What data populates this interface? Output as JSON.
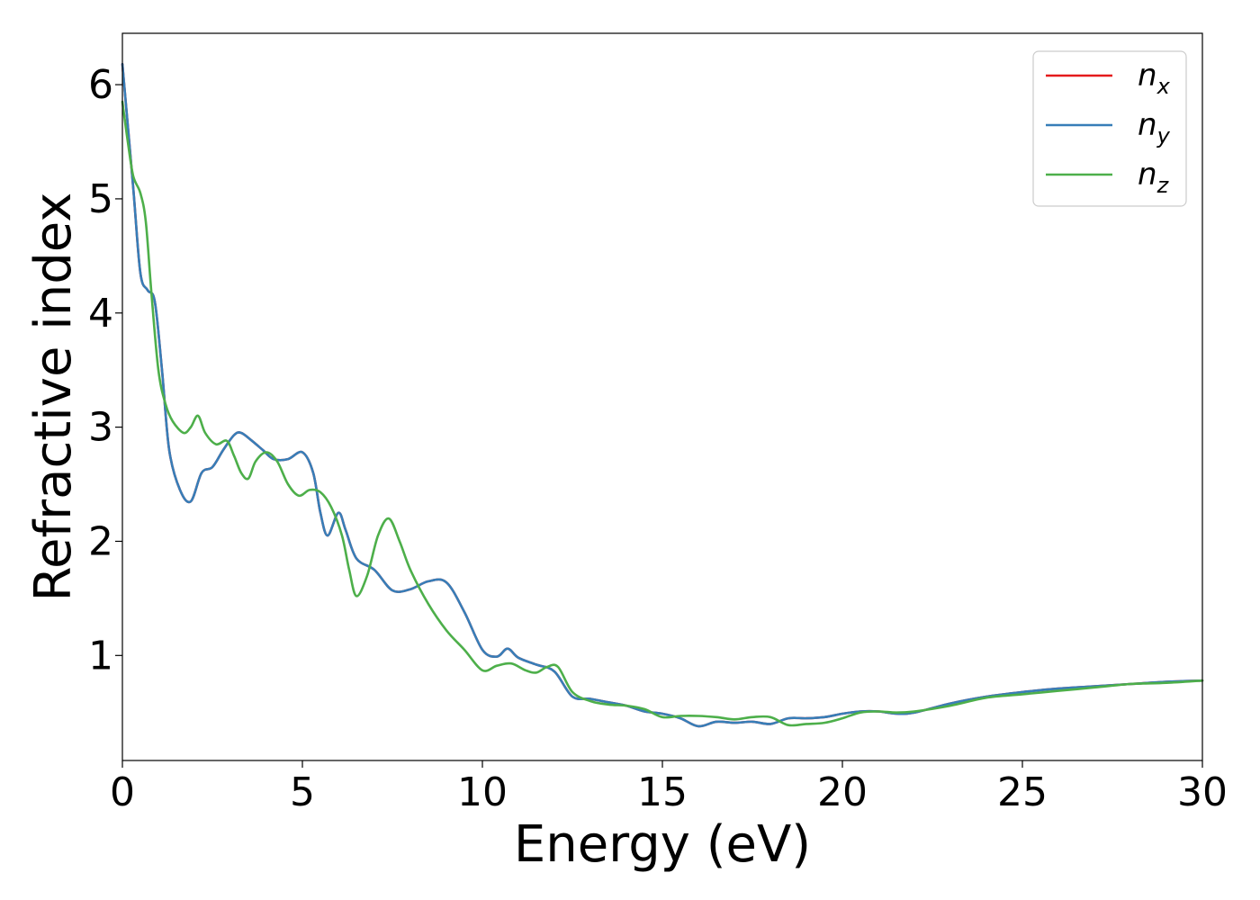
{
  "chart_data": {
    "type": "line",
    "title": "",
    "xlabel": "Energy (eV)",
    "ylabel": "Refractive index",
    "xlim": [
      0,
      30
    ],
    "ylim": [
      0.08,
      6.45
    ],
    "xticks": [
      0,
      5,
      10,
      15,
      20,
      25,
      30
    ],
    "yticks": [
      1,
      2,
      3,
      4,
      5,
      6
    ],
    "grid": false,
    "legend_position": "top-right",
    "series": [
      {
        "name": "n_x",
        "legend_base": "n",
        "legend_sub": "x",
        "color": "#e41a1c",
        "x": [
          0,
          0.3,
          0.5,
          0.7,
          0.9,
          1.1,
          1.3,
          1.6,
          1.9,
          2.2,
          2.5,
          2.8,
          3.1,
          3.3,
          3.6,
          3.9,
          4.2,
          4.6,
          5.0,
          5.3,
          5.5,
          5.7,
          6.0,
          6.2,
          6.5,
          7.0,
          7.5,
          8.0,
          8.5,
          9.0,
          9.5,
          10.0,
          10.4,
          10.7,
          11.0,
          11.5,
          12.0,
          12.5,
          13.0,
          13.5,
          14.0,
          14.5,
          15.0,
          15.5,
          16.0,
          16.5,
          17.0,
          17.5,
          18.0,
          18.5,
          19.0,
          19.5,
          20.0,
          20.5,
          21.0,
          21.5,
          22.0,
          23.0,
          24.0,
          25.0,
          26.0,
          27.0,
          28.0,
          29.0,
          30.0
        ],
        "y": [
          6.18,
          5.1,
          4.35,
          4.2,
          4.1,
          3.5,
          2.8,
          2.45,
          2.35,
          2.6,
          2.65,
          2.8,
          2.93,
          2.95,
          2.88,
          2.8,
          2.72,
          2.72,
          2.78,
          2.6,
          2.25,
          2.05,
          2.25,
          2.1,
          1.85,
          1.75,
          1.57,
          1.58,
          1.65,
          1.64,
          1.38,
          1.05,
          0.99,
          1.06,
          0.98,
          0.92,
          0.86,
          0.64,
          0.62,
          0.59,
          0.56,
          0.51,
          0.49,
          0.45,
          0.38,
          0.42,
          0.41,
          0.42,
          0.4,
          0.45,
          0.45,
          0.46,
          0.49,
          0.51,
          0.51,
          0.49,
          0.5,
          0.58,
          0.64,
          0.68,
          0.71,
          0.73,
          0.75,
          0.77,
          0.78
        ]
      },
      {
        "name": "n_y",
        "legend_base": "n",
        "legend_sub": "y",
        "color": "#377eb8",
        "x": [
          0,
          0.3,
          0.5,
          0.7,
          0.9,
          1.1,
          1.3,
          1.6,
          1.9,
          2.2,
          2.5,
          2.8,
          3.1,
          3.3,
          3.6,
          3.9,
          4.2,
          4.6,
          5.0,
          5.3,
          5.5,
          5.7,
          6.0,
          6.2,
          6.5,
          7.0,
          7.5,
          8.0,
          8.5,
          9.0,
          9.5,
          10.0,
          10.4,
          10.7,
          11.0,
          11.5,
          12.0,
          12.5,
          13.0,
          13.5,
          14.0,
          14.5,
          15.0,
          15.5,
          16.0,
          16.5,
          17.0,
          17.5,
          18.0,
          18.5,
          19.0,
          19.5,
          20.0,
          20.5,
          21.0,
          21.5,
          22.0,
          23.0,
          24.0,
          25.0,
          26.0,
          27.0,
          28.0,
          29.0,
          30.0
        ],
        "y": [
          6.18,
          5.1,
          4.35,
          4.2,
          4.1,
          3.5,
          2.8,
          2.45,
          2.35,
          2.6,
          2.65,
          2.8,
          2.93,
          2.95,
          2.88,
          2.8,
          2.72,
          2.72,
          2.78,
          2.6,
          2.25,
          2.05,
          2.25,
          2.1,
          1.85,
          1.75,
          1.57,
          1.58,
          1.65,
          1.64,
          1.38,
          1.05,
          0.99,
          1.06,
          0.98,
          0.92,
          0.86,
          0.64,
          0.62,
          0.59,
          0.56,
          0.51,
          0.49,
          0.45,
          0.38,
          0.42,
          0.41,
          0.42,
          0.4,
          0.45,
          0.45,
          0.46,
          0.49,
          0.51,
          0.51,
          0.49,
          0.5,
          0.58,
          0.64,
          0.68,
          0.71,
          0.73,
          0.75,
          0.77,
          0.78
        ]
      },
      {
        "name": "n_z",
        "legend_base": "n",
        "legend_sub": "z",
        "color": "#4daf4a",
        "x": [
          0,
          0.15,
          0.3,
          0.5,
          0.65,
          0.8,
          1.0,
          1.2,
          1.4,
          1.7,
          1.9,
          2.1,
          2.3,
          2.6,
          2.9,
          3.1,
          3.3,
          3.5,
          3.7,
          4.0,
          4.3,
          4.6,
          4.9,
          5.2,
          5.5,
          5.8,
          6.1,
          6.3,
          6.5,
          6.8,
          7.1,
          7.4,
          7.7,
          8.0,
          8.5,
          9.0,
          9.5,
          10.0,
          10.4,
          10.8,
          11.2,
          11.5,
          11.8,
          12.1,
          12.5,
          13.0,
          13.5,
          14.0,
          14.5,
          15.0,
          15.5,
          16.0,
          16.5,
          17.0,
          17.5,
          18.0,
          18.5,
          19.0,
          19.5,
          20.0,
          20.5,
          21.0,
          21.5,
          22.0,
          23.0,
          24.0,
          25.0,
          26.0,
          27.0,
          28.0,
          29.0,
          30.0
        ],
        "y": [
          5.85,
          5.5,
          5.2,
          5.05,
          4.8,
          4.2,
          3.5,
          3.2,
          3.05,
          2.95,
          3.0,
          3.1,
          2.95,
          2.85,
          2.88,
          2.75,
          2.6,
          2.55,
          2.7,
          2.78,
          2.7,
          2.5,
          2.4,
          2.45,
          2.43,
          2.3,
          2.05,
          1.75,
          1.52,
          1.7,
          2.05,
          2.2,
          2.0,
          1.75,
          1.45,
          1.22,
          1.05,
          0.87,
          0.91,
          0.93,
          0.87,
          0.85,
          0.9,
          0.9,
          0.68,
          0.6,
          0.57,
          0.56,
          0.53,
          0.46,
          0.47,
          0.47,
          0.46,
          0.44,
          0.46,
          0.46,
          0.39,
          0.4,
          0.41,
          0.45,
          0.5,
          0.51,
          0.5,
          0.51,
          0.56,
          0.63,
          0.66,
          0.69,
          0.72,
          0.75,
          0.76,
          0.78
        ]
      }
    ]
  }
}
